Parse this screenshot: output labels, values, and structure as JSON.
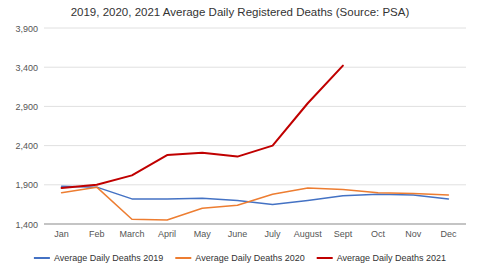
{
  "chart_data": {
    "type": "line",
    "title": "2019, 2020, 2021 Average Daily Registered Deaths (Source: PSA)",
    "categories": [
      "Jan",
      "Feb",
      "March",
      "April",
      "May",
      "June",
      "July",
      "August",
      "Sept",
      "Oct",
      "Nov",
      "Dec"
    ],
    "series": [
      {
        "name": "Average Daily Deaths 2019",
        "color": "#4472C4",
        "values": [
          1880,
          1870,
          1720,
          1720,
          1730,
          1700,
          1650,
          1700,
          1760,
          1780,
          1770,
          1720
        ]
      },
      {
        "name": "Average Daily Deaths 2020",
        "color": "#ED7D31",
        "values": [
          1800,
          1870,
          1460,
          1450,
          1600,
          1640,
          1780,
          1860,
          1840,
          1800,
          1790,
          1770
        ]
      },
      {
        "name": "Average Daily Deaths 2021",
        "color": "#C00000",
        "values": [
          1860,
          1900,
          2020,
          2280,
          2310,
          2260,
          2400,
          2940,
          3420,
          null,
          null,
          null
        ]
      }
    ],
    "ylim": [
      1400,
      3900
    ],
    "yticks": [
      {
        "value": 1400,
        "label": "1,400"
      },
      {
        "value": 1900,
        "label": "1,900"
      },
      {
        "value": 2400,
        "label": "2,400"
      },
      {
        "value": 2900,
        "label": "2,900"
      },
      {
        "value": 3400,
        "label": "3,400"
      },
      {
        "value": 3900,
        "label": "3,900"
      }
    ],
    "grid": true,
    "legend": "bottom"
  }
}
